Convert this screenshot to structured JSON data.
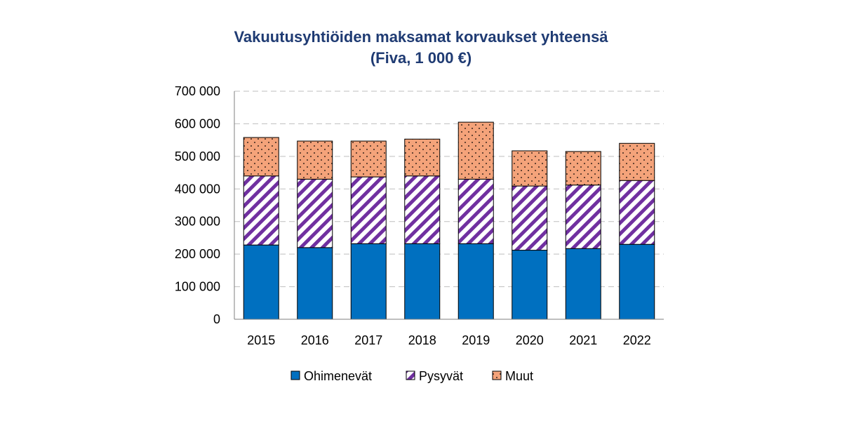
{
  "chart_data": {
    "type": "bar",
    "stacked": true,
    "title": "Vakuutusyhtiöiden maksamat korvaukset yhteensä",
    "subtitle": "(Fiva, 1 000 €)",
    "categories": [
      "2015",
      "2016",
      "2017",
      "2018",
      "2019",
      "2020",
      "2021",
      "2022"
    ],
    "series": [
      {
        "name": "Ohimenevät",
        "color": "#0070c0",
        "pattern": "solid",
        "values": [
          228000,
          220000,
          232000,
          232000,
          232000,
          212000,
          217000,
          230000
        ]
      },
      {
        "name": "Pysyvät",
        "color": "#7030a0",
        "pattern": "diagonal-stripes",
        "values": [
          212000,
          210000,
          205000,
          208000,
          198000,
          197000,
          195000,
          196000
        ]
      },
      {
        "name": "Muut",
        "color": "#f4a37a",
        "pattern": "dots",
        "values": [
          118000,
          117000,
          110000,
          113000,
          175000,
          108000,
          103000,
          114000
        ]
      }
    ],
    "ylim": [
      0,
      700000
    ],
    "yticks": [
      0,
      100000,
      200000,
      300000,
      400000,
      500000,
      600000,
      700000
    ],
    "ytick_labels": [
      "0",
      "100 000",
      "200 000",
      "300 000",
      "400 000",
      "500 000",
      "600 000",
      "700 000"
    ],
    "grid": true,
    "legend_position": "bottom"
  }
}
